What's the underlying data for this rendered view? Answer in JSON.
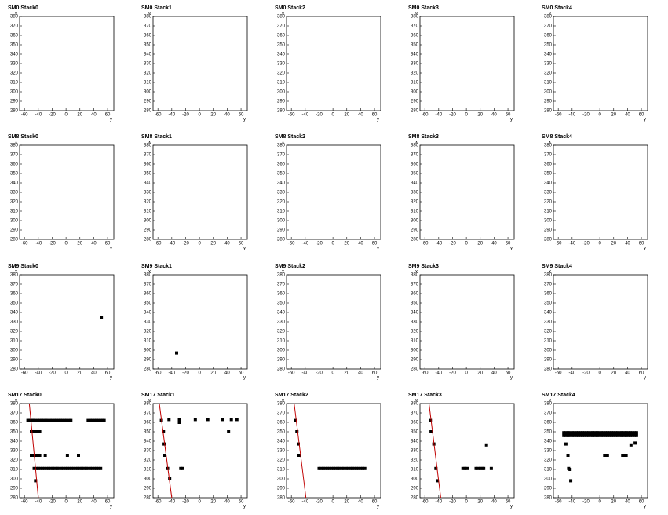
{
  "chart_data": [
    {
      "type": "scatter",
      "title": "SM0 Stack0",
      "xlabel": "y",
      "ylabel": "x",
      "xlim": [
        -67,
        69
      ],
      "ylim": [
        280,
        380
      ],
      "xticks": [
        -60,
        -40,
        -20,
        0,
        20,
        40,
        60
      ],
      "yticks": [
        280,
        290,
        300,
        310,
        320,
        330,
        340,
        350,
        360,
        370,
        380
      ],
      "series": []
    },
    {
      "type": "scatter",
      "title": "SM0 Stack1",
      "xlabel": "y",
      "ylabel": "x",
      "xlim": [
        -67,
        69
      ],
      "ylim": [
        280,
        380
      ],
      "xticks": [
        -60,
        -40,
        -20,
        0,
        20,
        40,
        60
      ],
      "yticks": [
        280,
        290,
        300,
        310,
        320,
        330,
        340,
        350,
        360,
        370,
        380
      ],
      "series": []
    },
    {
      "type": "scatter",
      "title": "SM0 Stack2",
      "xlabel": "y",
      "ylabel": "x",
      "xlim": [
        -67,
        69
      ],
      "ylim": [
        280,
        380
      ],
      "xticks": [
        -60,
        -40,
        -20,
        0,
        20,
        40,
        60
      ],
      "yticks": [
        280,
        290,
        300,
        310,
        320,
        330,
        340,
        350,
        360,
        370,
        380
      ],
      "series": []
    },
    {
      "type": "scatter",
      "title": "SM0 Stack3",
      "xlabel": "y",
      "ylabel": "x",
      "xlim": [
        -67,
        69
      ],
      "ylim": [
        280,
        380
      ],
      "xticks": [
        -60,
        -40,
        -20,
        0,
        20,
        40,
        60
      ],
      "yticks": [
        280,
        290,
        300,
        310,
        320,
        330,
        340,
        350,
        360,
        370,
        380
      ],
      "series": []
    },
    {
      "type": "scatter",
      "title": "SM0 Stack4",
      "xlabel": "y",
      "ylabel": "x",
      "xlim": [
        -67,
        69
      ],
      "ylim": [
        280,
        380
      ],
      "xticks": [
        -60,
        -40,
        -20,
        0,
        20,
        40,
        60
      ],
      "yticks": [
        280,
        290,
        300,
        310,
        320,
        330,
        340,
        350,
        360,
        370,
        380
      ],
      "series": []
    },
    {
      "type": "scatter",
      "title": "SM8 Stack0",
      "xlabel": "y",
      "ylabel": "x",
      "xlim": [
        -67,
        69
      ],
      "ylim": [
        280,
        380
      ],
      "xticks": [
        -60,
        -40,
        -20,
        0,
        20,
        40,
        60
      ],
      "yticks": [
        280,
        290,
        300,
        310,
        320,
        330,
        340,
        350,
        360,
        370,
        380
      ],
      "series": []
    },
    {
      "type": "scatter",
      "title": "SM8 Stack1",
      "xlabel": "y",
      "ylabel": "x",
      "xlim": [
        -67,
        69
      ],
      "ylim": [
        280,
        380
      ],
      "xticks": [
        -60,
        -40,
        -20,
        0,
        20,
        40,
        60
      ],
      "yticks": [
        280,
        290,
        300,
        310,
        320,
        330,
        340,
        350,
        360,
        370,
        380
      ],
      "series": []
    },
    {
      "type": "scatter",
      "title": "SM8 Stack2",
      "xlabel": "y",
      "ylabel": "x",
      "xlim": [
        -67,
        69
      ],
      "ylim": [
        280,
        380
      ],
      "xticks": [
        -60,
        -40,
        -20,
        0,
        20,
        40,
        60
      ],
      "yticks": [
        280,
        290,
        300,
        310,
        320,
        330,
        340,
        350,
        360,
        370,
        380
      ],
      "series": []
    },
    {
      "type": "scatter",
      "title": "SM8 Stack3",
      "xlabel": "y",
      "ylabel": "x",
      "xlim": [
        -67,
        69
      ],
      "ylim": [
        280,
        380
      ],
      "xticks": [
        -60,
        -40,
        -20,
        0,
        20,
        40,
        60
      ],
      "yticks": [
        280,
        290,
        300,
        310,
        320,
        330,
        340,
        350,
        360,
        370,
        380
      ],
      "series": []
    },
    {
      "type": "scatter",
      "title": "SM8 Stack4",
      "xlabel": "y",
      "ylabel": "x",
      "xlim": [
        -67,
        69
      ],
      "ylim": [
        280,
        380
      ],
      "xticks": [
        -60,
        -40,
        -20,
        0,
        20,
        40,
        60
      ],
      "yticks": [
        280,
        290,
        300,
        310,
        320,
        330,
        340,
        350,
        360,
        370,
        380
      ],
      "series": []
    },
    {
      "type": "scatter",
      "title": "SM9 Stack0",
      "xlabel": "y",
      "ylabel": "x",
      "xlim": [
        -67,
        69
      ],
      "ylim": [
        280,
        380
      ],
      "xticks": [
        -60,
        -40,
        -20,
        0,
        20,
        40,
        60
      ],
      "yticks": [
        280,
        290,
        300,
        310,
        320,
        330,
        340,
        350,
        360,
        370,
        380
      ],
      "series": [
        {
          "kind": "points",
          "color": "#000000",
          "x": [
            51
          ],
          "y": [
            335
          ]
        }
      ]
    },
    {
      "type": "scatter",
      "title": "SM9 Stack1",
      "xlabel": "y",
      "ylabel": "x",
      "xlim": [
        -67,
        69
      ],
      "ylim": [
        280,
        380
      ],
      "xticks": [
        -60,
        -40,
        -20,
        0,
        20,
        40,
        60
      ],
      "yticks": [
        280,
        290,
        300,
        310,
        320,
        330,
        340,
        350,
        360,
        370,
        380
      ],
      "series": [
        {
          "kind": "points",
          "color": "#000000",
          "x": [
            -33
          ],
          "y": [
            297
          ]
        }
      ]
    },
    {
      "type": "scatter",
      "title": "SM9 Stack2",
      "xlabel": "y",
      "ylabel": "x",
      "xlim": [
        -67,
        69
      ],
      "ylim": [
        280,
        380
      ],
      "xticks": [
        -60,
        -40,
        -20,
        0,
        20,
        40,
        60
      ],
      "yticks": [
        280,
        290,
        300,
        310,
        320,
        330,
        340,
        350,
        360,
        370,
        380
      ],
      "series": []
    },
    {
      "type": "scatter",
      "title": "SM9 Stack3",
      "xlabel": "y",
      "ylabel": "x",
      "xlim": [
        -67,
        69
      ],
      "ylim": [
        280,
        380
      ],
      "xticks": [
        -60,
        -40,
        -20,
        0,
        20,
        40,
        60
      ],
      "yticks": [
        280,
        290,
        300,
        310,
        320,
        330,
        340,
        350,
        360,
        370,
        380
      ],
      "series": []
    },
    {
      "type": "scatter",
      "title": "SM9 Stack4",
      "xlabel": "y",
      "ylabel": "x",
      "xlim": [
        -67,
        69
      ],
      "ylim": [
        280,
        380
      ],
      "xticks": [
        -60,
        -40,
        -20,
        0,
        20,
        40,
        60
      ],
      "yticks": [
        280,
        290,
        300,
        310,
        320,
        330,
        340,
        350,
        360,
        370,
        380
      ],
      "series": []
    },
    {
      "type": "scatter",
      "title": "SM17 Stack0",
      "xlabel": "y",
      "ylabel": "x",
      "xlim": [
        -67,
        69
      ],
      "ylim": [
        280,
        380
      ],
      "xticks": [
        -60,
        -40,
        -20,
        0,
        20,
        40,
        60
      ],
      "yticks": [
        280,
        290,
        300,
        310,
        320,
        330,
        340,
        350,
        360,
        370,
        380
      ],
      "series": [
        {
          "kind": "points",
          "color": "#000000",
          "x": [
            -55,
            -53,
            -51,
            -49,
            -47,
            -45,
            -41,
            -38,
            -35,
            -32,
            -29,
            -26,
            -23,
            -20,
            -17,
            -14,
            -11,
            -8,
            -5,
            -2,
            1,
            4,
            7,
            32,
            35,
            38,
            41,
            44,
            47,
            50,
            53,
            55,
            -50,
            -47,
            -44,
            -41,
            -38,
            -50,
            -47,
            -44,
            -41,
            -38,
            -30,
            2,
            18,
            -46,
            -43,
            -40,
            -37,
            -34,
            -31,
            -28,
            -25,
            -22,
            -19,
            -16,
            -13,
            -10,
            -7,
            -4,
            -1,
            2,
            5,
            8,
            11,
            14,
            17,
            20,
            23,
            26,
            29,
            32,
            35,
            38,
            41,
            44,
            47,
            50,
            -44
          ],
          "y": [
            362,
            362,
            362,
            362,
            362,
            362,
            362,
            362,
            362,
            362,
            362,
            362,
            362,
            362,
            362,
            362,
            362,
            362,
            362,
            362,
            362,
            362,
            362,
            362,
            362,
            362,
            362,
            362,
            362,
            362,
            362,
            362,
            350,
            350,
            350,
            350,
            350,
            325,
            325,
            325,
            325,
            325,
            325,
            325,
            325,
            311,
            311,
            311,
            311,
            311,
            311,
            311,
            311,
            311,
            311,
            311,
            311,
            311,
            311,
            311,
            311,
            311,
            311,
            311,
            311,
            311,
            311,
            311,
            311,
            311,
            311,
            311,
            311,
            311,
            311,
            311,
            311,
            311,
            298
          ]
        },
        {
          "kind": "line",
          "color": "#c00000",
          "x": [
            -53,
            -40
          ],
          "y": [
            380,
            280
          ]
        }
      ]
    },
    {
      "type": "scatter",
      "title": "SM17 Stack1",
      "xlabel": "y",
      "ylabel": "x",
      "xlim": [
        -67,
        69
      ],
      "ylim": [
        280,
        380
      ],
      "xticks": [
        -60,
        -40,
        -20,
        0,
        20,
        40,
        60
      ],
      "yticks": [
        280,
        290,
        300,
        310,
        320,
        330,
        340,
        350,
        360,
        370,
        380
      ],
      "series": [
        {
          "kind": "points",
          "color": "#000000",
          "x": [
            -55,
            -52,
            -51,
            -50,
            -46,
            -43,
            -44,
            -29,
            -6,
            12,
            33,
            46,
            54,
            -29,
            42,
            -27,
            -24
          ],
          "y": [
            362,
            350,
            337,
            325,
            311,
            300,
            363,
            363,
            363,
            363,
            363,
            363,
            363,
            360,
            350,
            311,
            311
          ]
        },
        {
          "kind": "line",
          "color": "#c00000",
          "x": [
            -58,
            -40
          ],
          "y": [
            380,
            280
          ]
        }
      ]
    },
    {
      "type": "scatter",
      "title": "SM17 Stack2",
      "xlabel": "y",
      "ylabel": "x",
      "xlim": [
        -67,
        69
      ],
      "ylim": [
        280,
        380
      ],
      "xticks": [
        -60,
        -40,
        -20,
        0,
        20,
        40,
        60
      ],
      "yticks": [
        280,
        290,
        300,
        310,
        320,
        330,
        340,
        350,
        360,
        370,
        380
      ],
      "series": [
        {
          "kind": "points",
          "color": "#000000",
          "x": [
            -54,
            -52,
            -50,
            -49,
            -20,
            -17,
            -14,
            -11,
            -8,
            -5,
            -2,
            1,
            4,
            7,
            10,
            13,
            16,
            19,
            22,
            25,
            28,
            31,
            34,
            37,
            40,
            43,
            46
          ],
          "y": [
            362,
            350,
            337,
            325,
            311,
            311,
            311,
            311,
            311,
            311,
            311,
            311,
            311,
            311,
            311,
            311,
            311,
            311,
            311,
            311,
            311,
            311,
            311,
            311,
            311,
            311,
            311
          ]
        },
        {
          "kind": "line",
          "color": "#c00000",
          "x": [
            -56,
            -39
          ],
          "y": [
            380,
            280
          ]
        }
      ]
    },
    {
      "type": "scatter",
      "title": "SM17 Stack3",
      "xlabel": "y",
      "ylabel": "x",
      "xlim": [
        -67,
        69
      ],
      "ylim": [
        280,
        380
      ],
      "xticks": [
        -60,
        -40,
        -20,
        0,
        20,
        40,
        60
      ],
      "yticks": [
        280,
        290,
        300,
        310,
        320,
        330,
        340,
        350,
        360,
        370,
        380
      ],
      "series": [
        {
          "kind": "points",
          "color": "#000000",
          "x": [
            -52,
            -51,
            -47,
            -44,
            -42,
            -5,
            -2,
            1,
            14,
            17,
            20,
            23,
            25,
            29,
            36
          ],
          "y": [
            362,
            350,
            337,
            311,
            298,
            311,
            311,
            311,
            311,
            311,
            311,
            311,
            311,
            336,
            311
          ]
        },
        {
          "kind": "line",
          "color": "#c00000",
          "x": [
            -54,
            -37
          ],
          "y": [
            380,
            280
          ]
        }
      ]
    },
    {
      "type": "scatter",
      "title": "SM17 Stack4",
      "xlabel": "y",
      "ylabel": "x",
      "xlim": [
        -67,
        69
      ],
      "ylim": [
        280,
        380
      ],
      "xticks": [
        -60,
        -40,
        -20,
        0,
        20,
        40,
        60
      ],
      "yticks": [
        280,
        290,
        300,
        310,
        320,
        330,
        340,
        350,
        360,
        370,
        380
      ],
      "series": [
        {
          "kind": "points",
          "color": "#000000",
          "x": [
            -52,
            -49,
            -46,
            -43,
            -40,
            -37,
            -34,
            -31,
            -28,
            -25,
            -22,
            -19,
            -16,
            -13,
            -10,
            -7,
            -4,
            -1,
            2,
            5,
            8,
            11,
            14,
            17,
            20,
            23,
            26,
            29,
            32,
            35,
            38,
            41,
            44,
            47,
            50,
            53,
            -52,
            -49,
            -46,
            -43,
            -40,
            -37,
            -34,
            -31,
            -28,
            -25,
            -22,
            -19,
            -16,
            -13,
            -10,
            -7,
            -4,
            -1,
            2,
            5,
            8,
            11,
            14,
            17,
            20,
            23,
            26,
            29,
            32,
            35,
            38,
            41,
            44,
            47,
            50,
            53,
            -49,
            -46,
            -45,
            -43,
            -42,
            7,
            9,
            11,
            33,
            35,
            38,
            45,
            51
          ],
          "y": [
            349,
            349,
            349,
            349,
            349,
            349,
            349,
            349,
            349,
            349,
            349,
            349,
            349,
            349,
            349,
            349,
            349,
            349,
            349,
            349,
            349,
            349,
            349,
            349,
            349,
            349,
            349,
            349,
            349,
            349,
            349,
            349,
            349,
            349,
            349,
            349,
            346,
            346,
            346,
            346,
            346,
            346,
            346,
            346,
            346,
            346,
            346,
            346,
            346,
            346,
            346,
            346,
            346,
            346,
            346,
            346,
            346,
            346,
            346,
            346,
            346,
            346,
            346,
            346,
            346,
            346,
            346,
            346,
            346,
            346,
            346,
            346,
            337,
            325,
            311,
            310,
            298,
            325,
            325,
            325,
            325,
            325,
            325,
            336,
            338
          ]
        }
      ]
    }
  ]
}
